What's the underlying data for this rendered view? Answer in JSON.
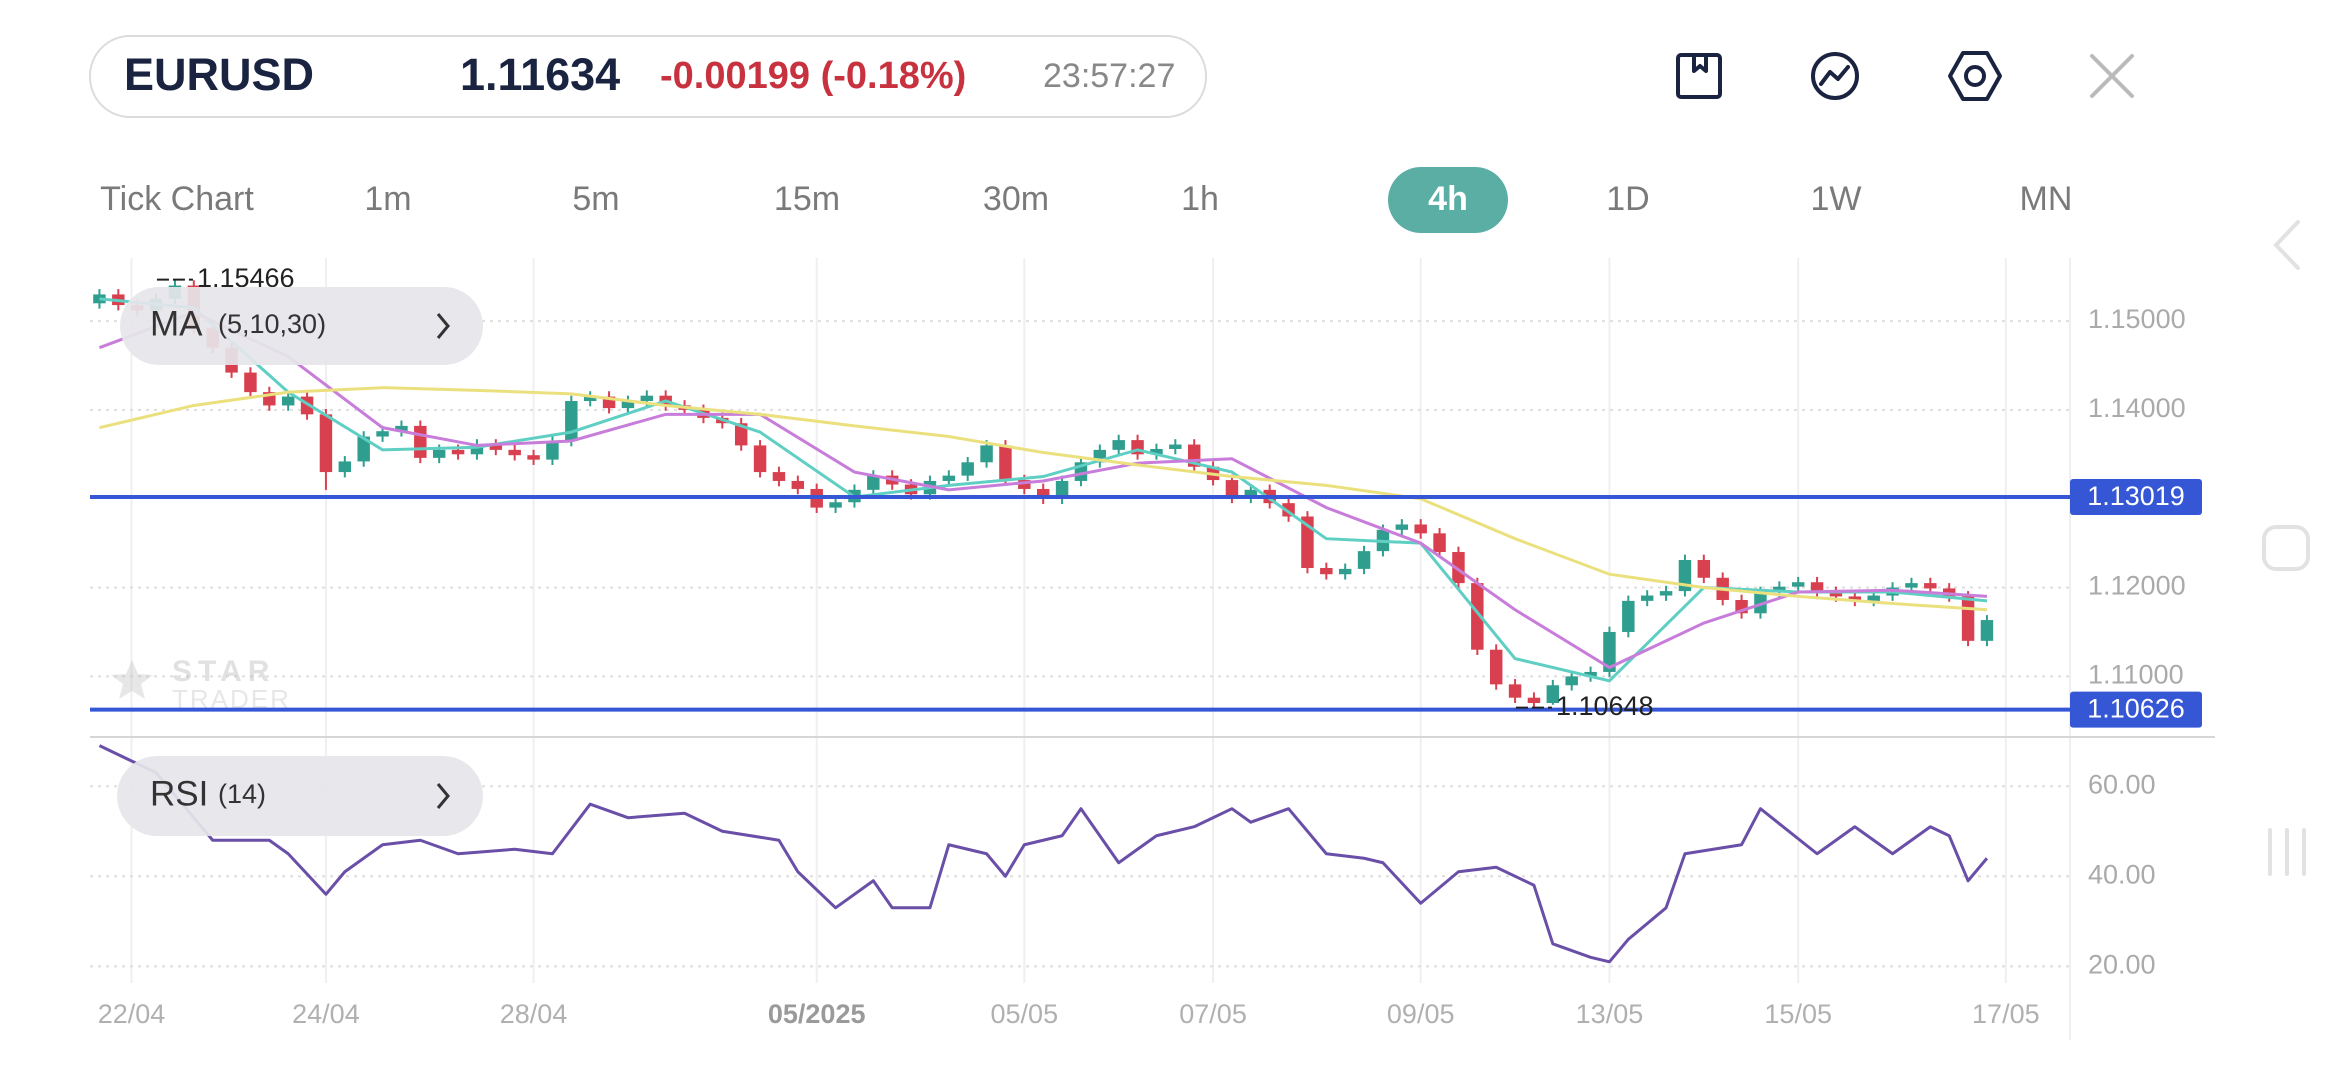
{
  "header": {
    "symbol": "EURUSD",
    "price": "1.11634",
    "change": "-0.00199 (-0.18%)",
    "time": "23:57:27"
  },
  "timeframes": {
    "items": [
      "Tick Chart",
      "1m",
      "5m",
      "15m",
      "30m",
      "1h",
      "4h",
      "1D",
      "1W",
      "MN"
    ],
    "active": "4h"
  },
  "watermark": [
    "STAR",
    "TRADER"
  ],
  "chart_data": [
    {
      "type": "candlestick",
      "up_color": "#2f9e8f",
      "down_color": "#d9404f",
      "open": [
        1.152,
        1.153,
        1.1518,
        1.1512,
        1.1525,
        1.154,
        1.1492,
        1.147,
        1.1442,
        1.142,
        1.1405,
        1.1415,
        1.1395,
        1.133,
        1.1342,
        1.137,
        1.1376,
        1.1382,
        1.1346,
        1.1355,
        1.135,
        1.1361,
        1.1355,
        1.1349,
        1.1344,
        1.1365,
        1.141,
        1.1415,
        1.1402,
        1.141,
        1.1416,
        1.1405,
        1.14,
        1.1391,
        1.1385,
        1.136,
        1.133,
        1.132,
        1.1311,
        1.129,
        1.1296,
        1.131,
        1.1326,
        1.1316,
        1.1305,
        1.132,
        1.1326,
        1.1341,
        1.136,
        1.1321,
        1.1311,
        1.13,
        1.132,
        1.1341,
        1.1355,
        1.1366,
        1.135,
        1.1356,
        1.1361,
        1.1336,
        1.1321,
        1.1301,
        1.131,
        1.1295,
        1.128,
        1.1222,
        1.1215,
        1.1221,
        1.1241,
        1.1265,
        1.1271,
        1.1261,
        1.124,
        1.1205,
        1.113,
        1.1091,
        1.1076,
        1.107,
        1.109,
        1.11,
        1.1105,
        1.115,
        1.1185,
        1.1191,
        1.1196,
        1.1231,
        1.1211,
        1.1186,
        1.1171,
        1.1195,
        1.1201,
        1.1206,
        1.1195,
        1.119,
        1.1185,
        1.1191,
        1.12,
        1.1205,
        1.1199,
        1.119,
        1.114
      ],
      "high": [
        1.1536,
        1.1536,
        1.1524,
        1.1531,
        1.15466,
        1.1546,
        1.1498,
        1.1476,
        1.1448,
        1.1426,
        1.1421,
        1.1421,
        1.1401,
        1.1348,
        1.1376,
        1.1382,
        1.1388,
        1.1388,
        1.1361,
        1.1361,
        1.1367,
        1.1367,
        1.1361,
        1.1355,
        1.1371,
        1.1416,
        1.1421,
        1.1421,
        1.1416,
        1.1422,
        1.1422,
        1.1411,
        1.1406,
        1.1397,
        1.1391,
        1.1366,
        1.1336,
        1.1326,
        1.1317,
        1.1302,
        1.1316,
        1.1332,
        1.1332,
        1.1322,
        1.1326,
        1.1332,
        1.1347,
        1.1366,
        1.1366,
        1.1327,
        1.1317,
        1.1326,
        1.1347,
        1.1361,
        1.1372,
        1.1372,
        1.1362,
        1.1367,
        1.1367,
        1.1342,
        1.1327,
        1.1316,
        1.1316,
        1.1301,
        1.1286,
        1.1228,
        1.1227,
        1.1247,
        1.1271,
        1.1277,
        1.1277,
        1.1267,
        1.1246,
        1.1211,
        1.1136,
        1.1097,
        1.1082,
        1.1096,
        1.1106,
        1.1111,
        1.1156,
        1.1191,
        1.1197,
        1.1202,
        1.1237,
        1.1237,
        1.1217,
        1.1192,
        1.1201,
        1.1207,
        1.1212,
        1.1212,
        1.1201,
        1.1196,
        1.1197,
        1.1206,
        1.1211,
        1.1211,
        1.1205,
        1.1196,
        1.1169
      ],
      "low": [
        1.1514,
        1.1512,
        1.1506,
        1.1506,
        1.1519,
        1.1486,
        1.1464,
        1.1436,
        1.1414,
        1.1399,
        1.1399,
        1.1389,
        1.131,
        1.1324,
        1.1336,
        1.1364,
        1.137,
        1.134,
        1.134,
        1.1344,
        1.1344,
        1.1349,
        1.1343,
        1.1338,
        1.1338,
        1.1359,
        1.1404,
        1.1396,
        1.1396,
        1.1404,
        1.1399,
        1.1394,
        1.1385,
        1.1379,
        1.1354,
        1.1324,
        1.1314,
        1.1305,
        1.1284,
        1.1284,
        1.129,
        1.1304,
        1.131,
        1.1299,
        1.1299,
        1.1314,
        1.132,
        1.1335,
        1.1315,
        1.1305,
        1.1294,
        1.1294,
        1.1314,
        1.1335,
        1.1349,
        1.1344,
        1.1344,
        1.135,
        1.133,
        1.1315,
        1.1295,
        1.1295,
        1.1289,
        1.1274,
        1.1216,
        1.1209,
        1.1209,
        1.1215,
        1.1235,
        1.1259,
        1.1255,
        1.1234,
        1.1199,
        1.1124,
        1.1085,
        1.107,
        1.10648,
        1.1068,
        1.1084,
        1.1094,
        1.1099,
        1.1144,
        1.1179,
        1.1185,
        1.119,
        1.1205,
        1.118,
        1.1165,
        1.1165,
        1.1189,
        1.1195,
        1.1189,
        1.1184,
        1.1179,
        1.1179,
        1.1185,
        1.1194,
        1.1193,
        1.1184,
        1.1134,
        1.1134
      ],
      "close": [
        1.153,
        1.1518,
        1.1512,
        1.1525,
        1.154,
        1.1492,
        1.147,
        1.1442,
        1.142,
        1.1405,
        1.1415,
        1.1395,
        1.133,
        1.1342,
        1.137,
        1.1376,
        1.1382,
        1.1346,
        1.1355,
        1.135,
        1.1361,
        1.1355,
        1.1349,
        1.1344,
        1.1365,
        1.141,
        1.1415,
        1.1402,
        1.141,
        1.1416,
        1.1405,
        1.14,
        1.1391,
        1.1385,
        1.136,
        1.133,
        1.132,
        1.1311,
        1.129,
        1.1296,
        1.131,
        1.1326,
        1.1316,
        1.1305,
        1.132,
        1.1326,
        1.1341,
        1.136,
        1.1321,
        1.1311,
        1.13,
        1.132,
        1.1341,
        1.1355,
        1.1366,
        1.135,
        1.1356,
        1.1361,
        1.1336,
        1.1321,
        1.1301,
        1.131,
        1.1295,
        1.128,
        1.1222,
        1.1215,
        1.1221,
        1.1241,
        1.1265,
        1.1271,
        1.1261,
        1.124,
        1.1205,
        1.113,
        1.1091,
        1.1076,
        1.107,
        1.109,
        1.11,
        1.1105,
        1.115,
        1.1185,
        1.1191,
        1.1196,
        1.1231,
        1.1211,
        1.1186,
        1.1171,
        1.1195,
        1.1201,
        1.1206,
        1.1195,
        1.119,
        1.1185,
        1.1191,
        1.12,
        1.1205,
        1.1199,
        1.119,
        1.114,
        1.11634
      ],
      "indicator": {
        "label": "MA",
        "params": "(5,10,30)",
        "x": [
          0,
          5,
          10,
          15,
          20,
          25,
          30,
          35,
          40,
          45,
          50,
          55,
          60,
          65,
          70,
          75,
          80,
          85,
          90,
          95,
          100
        ],
        "series": [
          {
            "color": "#5fcfc4",
            "values": [
              1.1525,
              1.1515,
              1.142,
              1.1355,
              1.1358,
              1.1375,
              1.141,
              1.1375,
              1.1302,
              1.1315,
              1.1325,
              1.1355,
              1.133,
              1.1255,
              1.125,
              1.112,
              1.1095,
              1.12,
              1.1195,
              1.1195,
              1.1185
            ]
          },
          {
            "color": "#c77dd9",
            "values": [
              1.147,
              1.151,
              1.146,
              1.138,
              1.136,
              1.1365,
              1.1395,
              1.1395,
              1.133,
              1.131,
              1.132,
              1.134,
              1.1345,
              1.129,
              1.125,
              1.1175,
              1.111,
              1.116,
              1.1195,
              1.1197,
              1.119
            ]
          },
          {
            "color": "#ebe07e",
            "values": [
              1.138,
              1.1405,
              1.142,
              1.1425,
              1.1422,
              1.1418,
              1.1405,
              1.1395,
              1.1382,
              1.137,
              1.1352,
              1.1338,
              1.1325,
              1.1315,
              1.13,
              1.1255,
              1.1215,
              1.12,
              1.119,
              1.1182,
              1.1175
            ]
          }
        ]
      },
      "levels": [
        1.13019,
        1.10626
      ],
      "level_color": "#3557d6",
      "max_label": {
        "x": 4,
        "value": 1.15466
      },
      "min_label": {
        "x": 76,
        "value": 1.10648
      },
      "xlim": [
        -0.5,
        104.4
      ],
      "ylim": [
        1.1034,
        1.1571
      ],
      "yticks": [
        {
          "value": 1.15,
          "label": "1.15000"
        },
        {
          "value": 1.14,
          "label": "1.14000"
        },
        {
          "value": 1.12,
          "label": "1.12000"
        },
        {
          "value": 1.11,
          "label": "1.11000"
        }
      ],
      "grid": true
    },
    {
      "type": "line",
      "label": "RSI",
      "params": "(14)",
      "color": "#6a4fa8",
      "x": [
        0,
        3,
        5,
        6,
        9,
        10,
        12,
        13,
        15,
        17,
        19,
        22,
        24,
        26,
        28,
        31,
        33,
        36,
        37,
        39,
        41,
        42,
        44,
        45,
        47,
        48,
        49,
        51,
        52,
        54,
        56,
        58,
        60,
        61,
        63,
        65,
        67,
        68,
        70,
        72,
        74,
        76,
        77,
        79,
        80,
        81,
        83,
        84,
        87,
        88,
        91,
        93,
        95,
        97,
        98,
        99,
        100
      ],
      "values": [
        69,
        63,
        53,
        48,
        48,
        45,
        36,
        41,
        47,
        48,
        45,
        46,
        45,
        56,
        53,
        54,
        50,
        48,
        41,
        33,
        39,
        33,
        33,
        47,
        45,
        40,
        47,
        49,
        55,
        43,
        49,
        51,
        55,
        52,
        55,
        45,
        44,
        43,
        34,
        41,
        42,
        38,
        25,
        22,
        21,
        26,
        33,
        45,
        47,
        55,
        45,
        51,
        45,
        51,
        49,
        39,
        44
      ],
      "xlim": [
        -0.5,
        104.4
      ],
      "ylim": [
        16.3,
        70.7
      ],
      "yticks": [
        {
          "value": 60,
          "label": "60.00"
        },
        {
          "value": 40,
          "label": "40.00"
        },
        {
          "value": 20,
          "label": "20.00"
        }
      ],
      "xticks": [
        {
          "value": 1.7,
          "label": "22/04"
        },
        {
          "value": 12,
          "label": "24/04"
        },
        {
          "value": 23,
          "label": "28/04"
        },
        {
          "value": 38,
          "label": "05/2025",
          "emphasis": true
        },
        {
          "value": 49,
          "label": "05/05"
        },
        {
          "value": 59,
          "label": "07/05"
        },
        {
          "value": 70,
          "label": "09/05"
        },
        {
          "value": 80,
          "label": "13/05"
        },
        {
          "value": 90,
          "label": "15/05"
        },
        {
          "value": 101,
          "label": "17/05"
        }
      ],
      "grid": true
    }
  ]
}
